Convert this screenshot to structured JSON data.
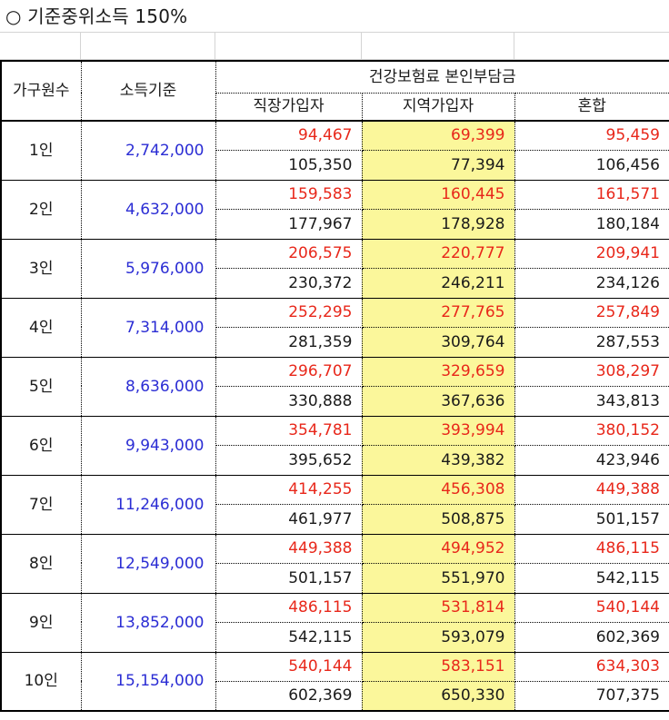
{
  "title": "○ 기준중위소득 150%",
  "headers": {
    "household": "가구원수",
    "income": "소득기준",
    "premium_group": "건강보험료 본인부담금",
    "employee": "직장가입자",
    "regional": "지역가입자",
    "mixed": "혼합"
  },
  "rows": [
    {
      "household": "1인",
      "income": "2,742,000",
      "r1": [
        "94,467",
        "69,399",
        "95,459"
      ],
      "r2": [
        "105,350",
        "77,394",
        "106,456"
      ]
    },
    {
      "household": "2인",
      "income": "4,632,000",
      "r1": [
        "159,583",
        "160,445",
        "161,571"
      ],
      "r2": [
        "177,967",
        "178,928",
        "180,184"
      ]
    },
    {
      "household": "3인",
      "income": "5,976,000",
      "r1": [
        "206,575",
        "220,777",
        "209,941"
      ],
      "r2": [
        "230,372",
        "246,211",
        "234,126"
      ]
    },
    {
      "household": "4인",
      "income": "7,314,000",
      "r1": [
        "252,295",
        "277,765",
        "257,849"
      ],
      "r2": [
        "281,359",
        "309,764",
        "287,553"
      ]
    },
    {
      "household": "5인",
      "income": "8,636,000",
      "r1": [
        "296,707",
        "329,659",
        "308,297"
      ],
      "r2": [
        "330,888",
        "367,636",
        "343,813"
      ]
    },
    {
      "household": "6인",
      "income": "9,943,000",
      "r1": [
        "354,781",
        "393,994",
        "380,152"
      ],
      "r2": [
        "395,652",
        "439,382",
        "423,946"
      ]
    },
    {
      "household": "7인",
      "income": "11,246,000",
      "r1": [
        "414,255",
        "456,308",
        "449,388"
      ],
      "r2": [
        "461,977",
        "508,875",
        "501,157"
      ]
    },
    {
      "household": "8인",
      "income": "12,549,000",
      "r1": [
        "449,388",
        "494,952",
        "486,115"
      ],
      "r2": [
        "501,157",
        "551,970",
        "542,115"
      ]
    },
    {
      "household": "9인",
      "income": "13,852,000",
      "r1": [
        "486,115",
        "531,814",
        "540,144"
      ],
      "r2": [
        "542,115",
        "593,079",
        "602,369"
      ]
    },
    {
      "household": "10인",
      "income": "15,154,000",
      "r1": [
        "540,144",
        "583,151",
        "634,303"
      ],
      "r2": [
        "602,369",
        "650,330",
        "707,375"
      ]
    }
  ],
  "colors": {
    "red": "#e8271a",
    "blue": "#2b2dd4",
    "highlight": "#fbf79b"
  }
}
